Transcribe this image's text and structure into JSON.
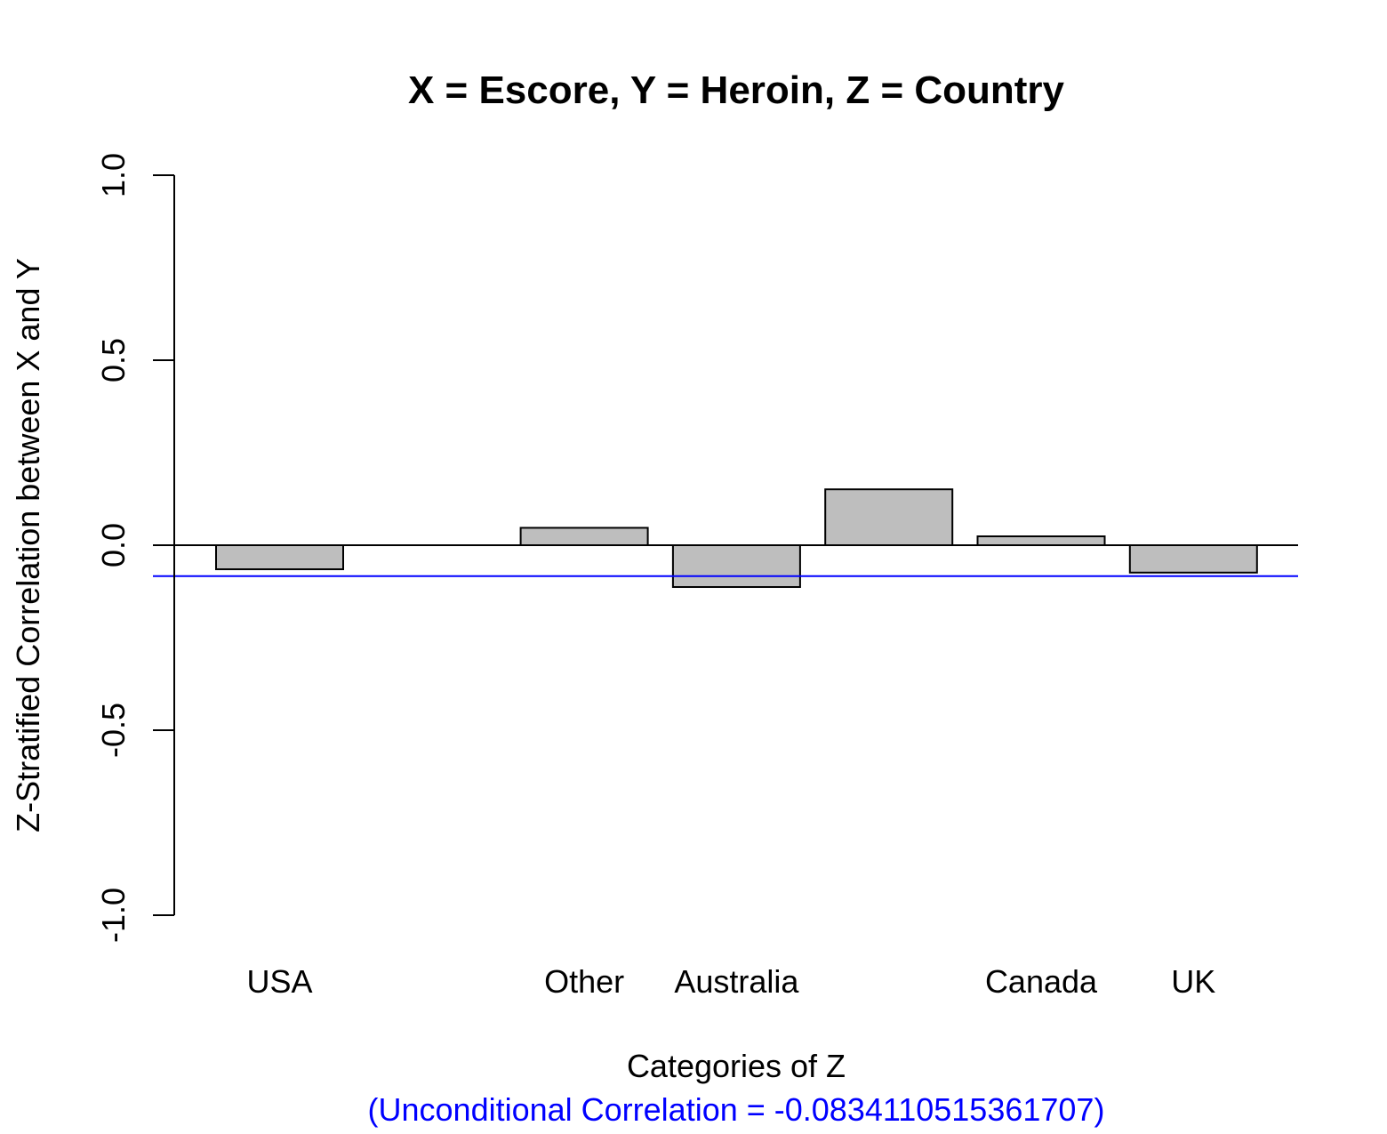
{
  "chart_data": {
    "type": "bar",
    "title": "X = Escore, Y = Heroin, Z = Country",
    "xlabel": "Categories of Z",
    "ylabel": "Z-Stratified Correlation between X and Y",
    "subtitle": "(Unconditional Correlation = -0.0834110515361707)",
    "ylim": [
      -1,
      1
    ],
    "yticks": [
      {
        "value": -1.0,
        "label": "-1.0"
      },
      {
        "value": -0.5,
        "label": "-0.5"
      },
      {
        "value": 0.0,
        "label": "0.0"
      },
      {
        "value": 0.5,
        "label": "0.5"
      },
      {
        "value": 1.0,
        "label": "1.0"
      }
    ],
    "categories": [
      "USA",
      "",
      "Other",
      "Australia",
      "",
      "Canada",
      "UK"
    ],
    "values": [
      -0.065,
      null,
      0.047,
      -0.113,
      0.151,
      0.024,
      -0.074
    ],
    "reference_line": {
      "value": -0.0834110515361707,
      "color": "#0000ff"
    },
    "zero_line": true,
    "bar_fill": "#bebebe",
    "bar_stroke": "#000000",
    "subtitle_color": "#0000ff",
    "grid": false,
    "legend": "none"
  }
}
